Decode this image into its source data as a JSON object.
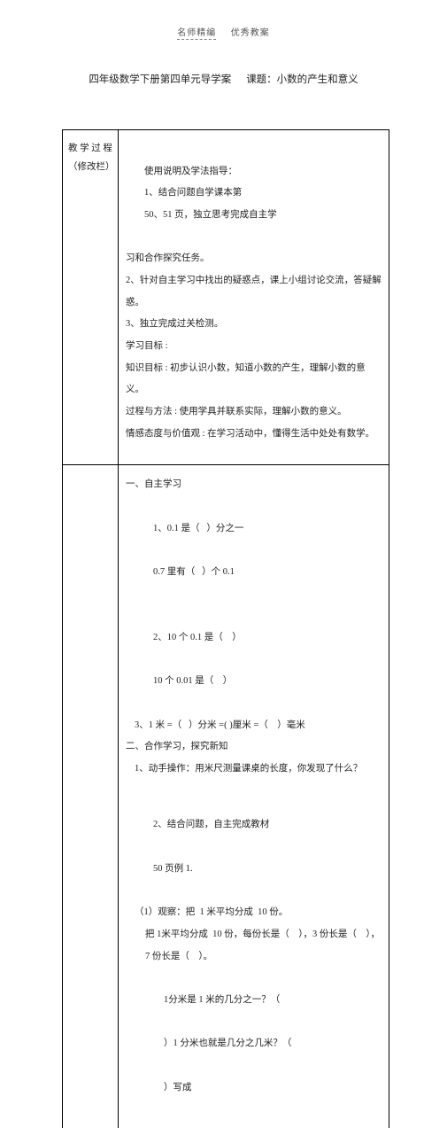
{
  "header": {
    "left": "名师精编",
    "right": "优秀教案"
  },
  "title": {
    "left": "四年级数学下册第四单元导学案",
    "right": "课题：小数的产生和意义"
  },
  "section1": {
    "left_line1": "教 学 过 程",
    "left_line2": "（修改栏）",
    "r1a": "使用说明及学法指导：",
    "r1b": "1、结合问题自学课本第",
    "r1c": "50、51 页，独立思考完成自主学",
    "r2": "习和合作探究任务。",
    "r3": "2、针对自主学习中找出的疑惑点，课上小组讨论交流，答疑解惑。",
    "r4": "3、独立完成过关检测。",
    "r5": "学习目标 :",
    "r6": "知识目标 : 初步认识小数，知道小数的产生，理解小数的意义。",
    "r7": "过程与方法 : 使用学具并联系实际，理解小数的意义。",
    "r8": "情感态度与价值观 : 在学习活动中，懂得生活中处处有数学。"
  },
  "section2": {
    "s1": "一、自主学习",
    "s2a": "1、0.1 是（   ）分之一",
    "s2b": "0.7 里有（   ）个 0.1",
    "s3a": "2、10 个 0.1 是（    ）",
    "s3b": "10 个 0.01 是（    ）",
    "s4": "3、1 米 =（   ）分米 =( )厘米 =（    ）毫米",
    "s5": "二、合作学习，探究新知",
    "s6": "1、动手操作：用米尺测量课桌的长度，你发现了什么？",
    "s7a": "2、结合问题，自主完成教材",
    "s7b": "50 页例 1.",
    "s8": "（1）观察：把  1 米平均分成  10 份。",
    "s9": "把 1米平均分成  10 份，每份长是（    ），3 份长是（    ），7 份长是（    ）。",
    "s10a": "1分米是 1 米的几分之一？（",
    "s10b": "）1 分米也就是几分之几米？（",
    "s10c": "）写成"
  }
}
